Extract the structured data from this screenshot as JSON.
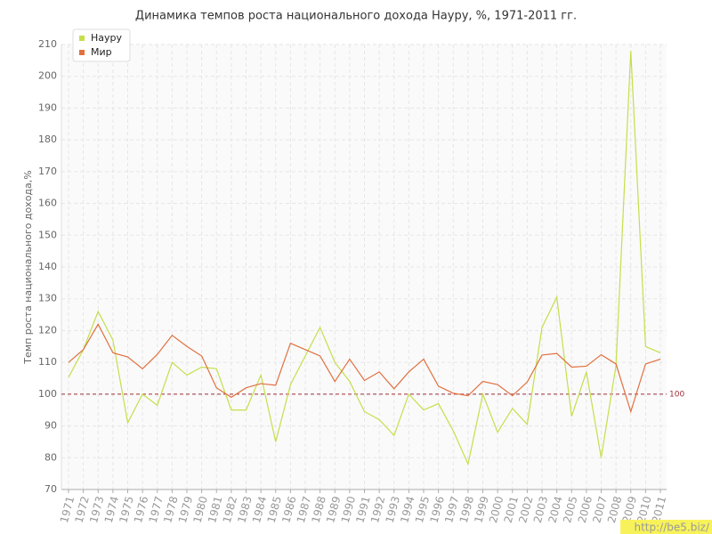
{
  "chart_data": {
    "type": "line",
    "title": "Динамика темпов роста национального дохода Науру, %, 1971-2011 гг.",
    "y_label": "Темп роста национального дохода,%",
    "categories": [
      "1971",
      "1972",
      "1973",
      "1974",
      "1975",
      "1976",
      "1977",
      "1978",
      "1979",
      "1980",
      "1981",
      "1982",
      "1983",
      "1984",
      "1985",
      "1986",
      "1987",
      "1988",
      "1989",
      "1990",
      "1991",
      "1992",
      "1993",
      "1994",
      "1995",
      "1996",
      "1997",
      "1998",
      "1999",
      "2000",
      "2001",
      "2002",
      "2003",
      "2004",
      "2005",
      "2006",
      "2007",
      "2008",
      "2009",
      "2010",
      "2011"
    ],
    "series": [
      {
        "name": "Науру",
        "color": "#c4df4a",
        "values": [
          105.3,
          114,
          126,
          117,
          91,
          100,
          96.5,
          110,
          106,
          108.5,
          108,
          95,
          95,
          106,
          85,
          103,
          112,
          121,
          110,
          104,
          94.5,
          92,
          87,
          100,
          95,
          97,
          88.5,
          78,
          100,
          88,
          95.5,
          90.5,
          121,
          130.5,
          93,
          107,
          80,
          109,
          208,
          115,
          113
        ]
      },
      {
        "name": "Мир",
        "color": "#e0703f",
        "values": [
          110,
          114,
          122,
          113,
          111.7,
          108,
          112.5,
          118.5,
          115,
          112,
          102,
          99,
          102,
          103.3,
          102.8,
          116,
          114,
          112,
          104,
          111,
          104.3,
          107,
          101.7,
          107,
          111,
          102.5,
          100.3,
          99.5,
          104,
          103,
          99.5,
          103.8,
          112.3,
          112.8,
          108.5,
          108.8,
          112.4,
          109.5,
          94.5,
          109.5,
          111
        ]
      }
    ],
    "ylim": [
      70,
      210
    ],
    "yticks": [
      70,
      80,
      90,
      100,
      110,
      120,
      130,
      140,
      150,
      160,
      170,
      180,
      190,
      200,
      210
    ],
    "grid": true,
    "legend": "top-left",
    "reference_line": {
      "value": 100,
      "label": "100",
      "color": "#a0303a"
    },
    "watermark": "http://be5.biz/"
  }
}
